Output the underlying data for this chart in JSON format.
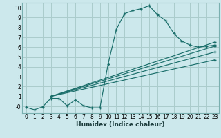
{
  "title": "",
  "xlabel": "Humidex (Indice chaleur)",
  "bg_color": "#cce8ec",
  "grid_color": "#aacccc",
  "line_color": "#1a6e6a",
  "xlim": [
    -0.5,
    23.5
  ],
  "ylim": [
    -0.7,
    10.5
  ],
  "xticks": [
    0,
    1,
    2,
    3,
    4,
    5,
    6,
    7,
    8,
    9,
    10,
    11,
    12,
    13,
    14,
    15,
    16,
    17,
    18,
    19,
    20,
    21,
    22,
    23
  ],
  "yticks": [
    0,
    1,
    2,
    3,
    4,
    5,
    6,
    7,
    8,
    9,
    10
  ],
  "ytick_labels": [
    "-0",
    "1",
    "2",
    "3",
    "4",
    "5",
    "6",
    "7",
    "8",
    "9",
    "10"
  ],
  "curve1_x": [
    0,
    1,
    2,
    3,
    4,
    5,
    6,
    7,
    8,
    9,
    10,
    11,
    12,
    13,
    14,
    15,
    16,
    17,
    18,
    19,
    20,
    21,
    22,
    23
  ],
  "curve1_y": [
    -0.1,
    -0.35,
    -0.05,
    0.8,
    0.8,
    0.05,
    0.65,
    0.05,
    -0.15,
    -0.15,
    4.3,
    7.8,
    9.4,
    9.7,
    9.9,
    10.2,
    9.3,
    8.7,
    7.4,
    6.6,
    6.2,
    6.0,
    6.1,
    6.2
  ],
  "line2_x0": 3,
  "line2_y0": 1.0,
  "line2_x1": 23,
  "line2_y1": 6.1,
  "line3_x0": 3,
  "line3_y0": 1.0,
  "line3_x1": 23,
  "line3_y1": 6.5,
  "line4_x0": 3,
  "line4_y0": 1.0,
  "line4_x1": 23,
  "line4_y1": 5.5,
  "line5_x0": 3,
  "line5_y0": 1.0,
  "line5_x1": 23,
  "line5_y1": 4.7,
  "xlabel_fontsize": 6.5,
  "tick_fontsize": 5.5
}
